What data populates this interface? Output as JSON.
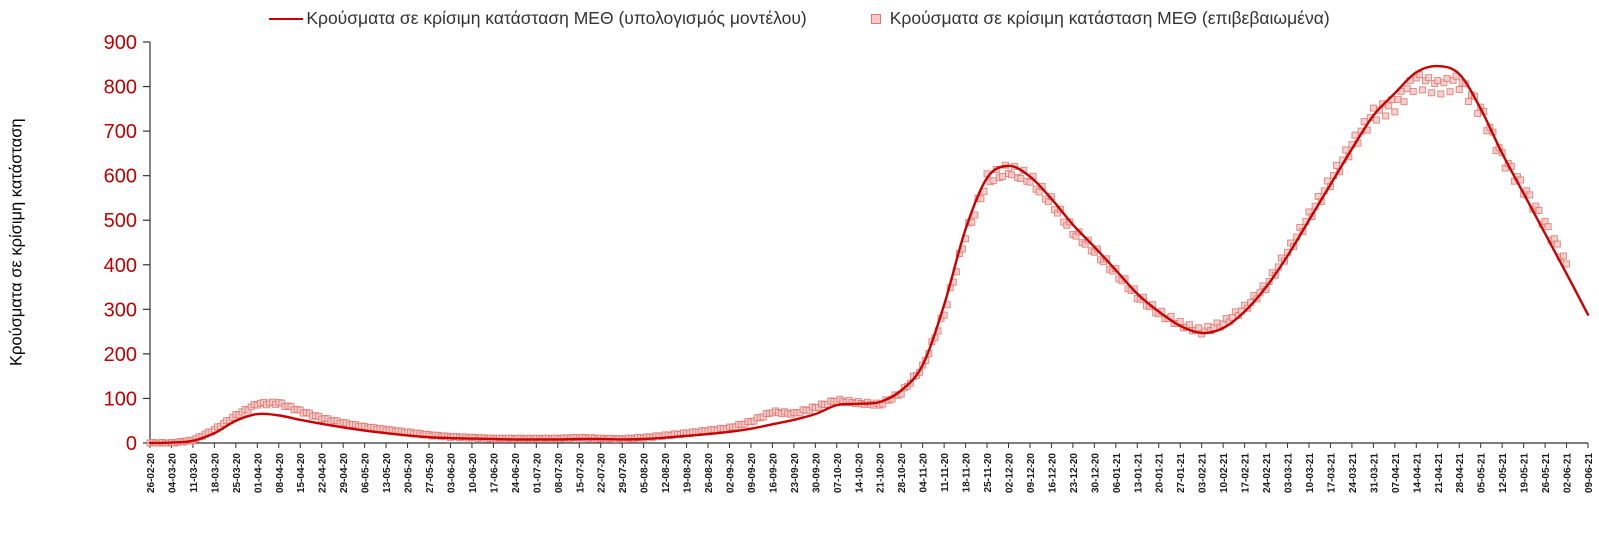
{
  "legend": {
    "model_label": "Κρούσματα σε κρίσιμη κατάσταση ΜΕΘ (υπολογισμός μοντέλου)",
    "confirmed_label": "Κρούσματα σε κρίσιμη κατάσταση ΜΕΘ (επιβεβαιωμένα)"
  },
  "colors": {
    "model_line": "#cc0000",
    "confirmed_fill": "#f7c9c6",
    "confirmed_stroke": "#db7a74",
    "axis": "#333333",
    "y_tick_label": "#c00000",
    "x_tick_label": "#1a1a1a"
  },
  "chart_data": {
    "type": "line",
    "title": "",
    "xlabel": "",
    "ylabel": "Κρούσματα σε κρίσιμη κατάσταση",
    "ylim": [
      0,
      900
    ],
    "ytick_step": 100,
    "grid": false,
    "legend_position": "top",
    "categories": [
      "26-02-20",
      "04-03-20",
      "11-03-20",
      "18-03-20",
      "25-03-20",
      "01-04-20",
      "08-04-20",
      "15-04-20",
      "22-04-20",
      "29-04-20",
      "06-05-20",
      "13-05-20",
      "20-05-20",
      "27-05-20",
      "03-06-20",
      "10-06-20",
      "17-06-20",
      "24-06-20",
      "01-07-20",
      "08-07-20",
      "15-07-20",
      "22-07-20",
      "29-07-20",
      "05-08-20",
      "12-08-20",
      "19-08-20",
      "26-08-20",
      "02-09-20",
      "09-09-20",
      "16-09-20",
      "23-09-20",
      "30-09-20",
      "07-10-20",
      "14-10-20",
      "21-10-20",
      "28-10-20",
      "04-11-20",
      "11-11-20",
      "18-11-20",
      "25-11-20",
      "02-12-20",
      "09-12-20",
      "16-12-20",
      "23-12-20",
      "30-12-20",
      "06-01-21",
      "13-01-21",
      "20-01-21",
      "27-01-21",
      "03-02-21",
      "10-02-21",
      "17-02-21",
      "24-02-21",
      "03-03-21",
      "10-03-21",
      "17-03-21",
      "24-03-21",
      "31-03-21",
      "07-04-21",
      "14-04-21",
      "21-04-21",
      "28-04-21",
      "05-05-21",
      "12-05-21",
      "19-05-21",
      "26-05-21",
      "02-06-21",
      "09-06-21"
    ],
    "series": [
      {
        "name": "Κρούσματα σε κρίσιμη κατάσταση ΜΕΘ (υπολογισμός μοντέλου)",
        "type": "line",
        "color": "#cc0000",
        "values": [
          0,
          1,
          5,
          22,
          50,
          65,
          62,
          52,
          43,
          35,
          28,
          22,
          17,
          13,
          11,
          10,
          9,
          8,
          8,
          8,
          9,
          9,
          8,
          9,
          12,
          16,
          20,
          25,
          32,
          42,
          52,
          65,
          85,
          88,
          92,
          118,
          175,
          310,
          480,
          595,
          622,
          598,
          548,
          490,
          440,
          388,
          335,
          295,
          263,
          247,
          258,
          295,
          350,
          420,
          500,
          580,
          660,
          735,
          785,
          832,
          846,
          828,
          750,
          650,
          560,
          470,
          380,
          288
        ]
      },
      {
        "name": "Κρούσματα σε κρίσιμη κατάσταση ΜΕΘ (επιβεβαιωμένα)",
        "type": "scatter-square",
        "color": "#f7c9c6",
        "values": [
          0,
          0,
          6,
          30,
          62,
          88,
          90,
          72,
          56,
          45,
          36,
          30,
          24,
          18,
          14,
          12,
          10,
          10,
          10,
          10,
          12,
          10,
          9,
          12,
          17,
          22,
          28,
          34,
          48,
          70,
          66,
          80,
          96,
          90,
          86,
          112,
          170,
          290,
          465,
          590,
          612,
          592,
          540,
          475,
          432,
          382,
          330,
          292,
          266,
          250,
          268,
          302,
          352,
          428,
          508,
          588,
          668,
          738,
          760,
          815,
          800,
          812,
          748,
          642,
          572,
          492,
          402,
          null
        ]
      }
    ]
  }
}
